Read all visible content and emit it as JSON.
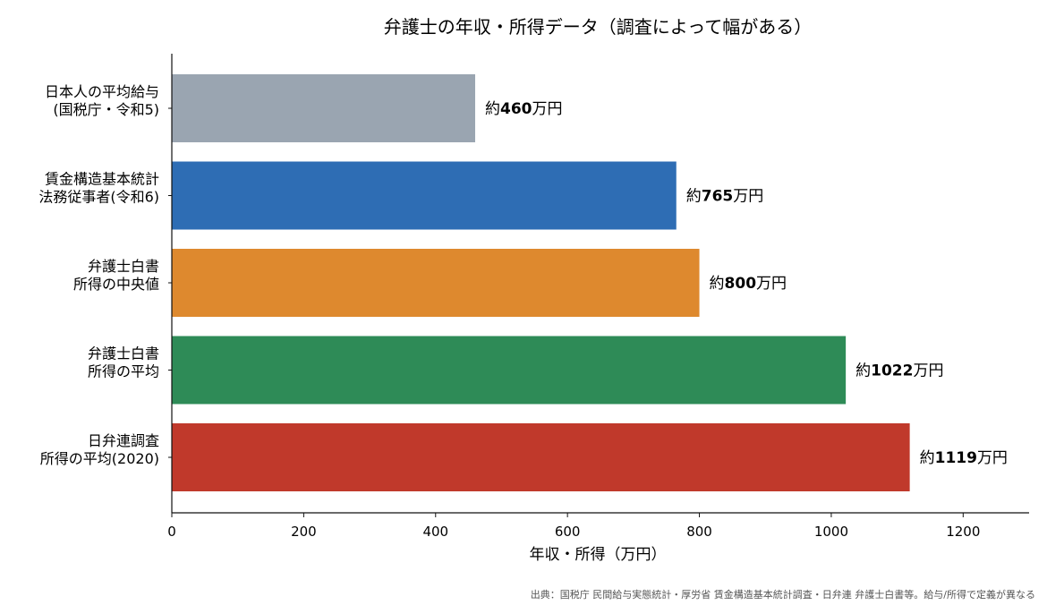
{
  "chart_data": {
    "type": "bar",
    "orientation": "horizontal",
    "title": "弁護士の年収・所得データ（調査によって幅がある）",
    "xlabel": "年収・所得（万円）",
    "ylabel": "",
    "xlim": [
      0,
      1300
    ],
    "xticks": [
      0,
      200,
      400,
      600,
      800,
      1000,
      1200
    ],
    "grid": false,
    "categories": [
      [
        "日本人の平均給与",
        "(国税庁・令和5)"
      ],
      [
        "賃金構造基本統計",
        "法務従事者(令和6)"
      ],
      [
        "弁護士白書",
        "所得の中央値"
      ],
      [
        "弁護士白書",
        "所得の平均"
      ],
      [
        "日弁連調査",
        "所得の平均(2020)"
      ]
    ],
    "values": [
      460,
      765,
      800,
      1022,
      1119
    ],
    "value_prefix": "約",
    "value_suffix": "万円",
    "colors": [
      "#9aa5b1",
      "#2e6db4",
      "#de892e",
      "#2e8b57",
      "#c0392b"
    ]
  },
  "footnote": "出典：国税庁 民間給与実態統計・厚労省 賃金構造基本統計調査・日弁連 弁護士白書等。給与/所得で定義が異なる"
}
